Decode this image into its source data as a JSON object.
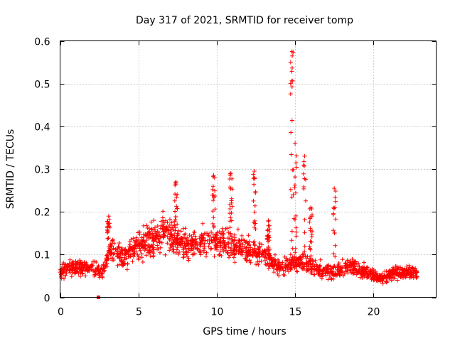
{
  "chart_data": {
    "type": "scatter",
    "title": "Day 317 of 2021, SRMTID for receiver tomp",
    "xlabel": "GPS time / hours",
    "ylabel": "SRMTID / TECUs",
    "xlim": [
      0,
      24
    ],
    "ylim": [
      0,
      0.6
    ],
    "xticks": [
      0,
      5,
      10,
      15,
      20
    ],
    "yticks": [
      0,
      0.1,
      0.2,
      0.3,
      0.4,
      0.5,
      0.6
    ],
    "xtick_labels": [
      "0",
      "5",
      "10",
      "15",
      "20"
    ],
    "ytick_labels": [
      "0",
      "0.1",
      "0.2",
      "0.3",
      "0.4",
      "0.5",
      "0.6"
    ],
    "grid": true,
    "marker": "+",
    "color": "#ff0000",
    "time_range_hours": [
      0,
      22.8
    ],
    "profile": [
      {
        "t": 0.0,
        "y": 0.06
      },
      {
        "t": 1.0,
        "y": 0.07
      },
      {
        "t": 2.0,
        "y": 0.068
      },
      {
        "t": 2.7,
        "y": 0.06
      },
      {
        "t": 3.2,
        "y": 0.11
      },
      {
        "t": 4.0,
        "y": 0.09
      },
      {
        "t": 5.0,
        "y": 0.12
      },
      {
        "t": 6.0,
        "y": 0.14
      },
      {
        "t": 7.0,
        "y": 0.15
      },
      {
        "t": 8.0,
        "y": 0.12
      },
      {
        "t": 9.0,
        "y": 0.13
      },
      {
        "t": 10.0,
        "y": 0.13
      },
      {
        "t": 11.0,
        "y": 0.12
      },
      {
        "t": 12.0,
        "y": 0.11
      },
      {
        "t": 13.0,
        "y": 0.1
      },
      {
        "t": 14.0,
        "y": 0.07
      },
      {
        "t": 14.8,
        "y": 0.08
      },
      {
        "t": 15.5,
        "y": 0.08
      },
      {
        "t": 16.5,
        "y": 0.065
      },
      {
        "t": 17.5,
        "y": 0.06
      },
      {
        "t": 18.5,
        "y": 0.075
      },
      {
        "t": 19.5,
        "y": 0.06
      },
      {
        "t": 20.5,
        "y": 0.045
      },
      {
        "t": 21.5,
        "y": 0.06
      },
      {
        "t": 22.8,
        "y": 0.055
      }
    ],
    "spikes": [
      {
        "t": 3.1,
        "y": 0.19
      },
      {
        "t": 7.4,
        "y": 0.27
      },
      {
        "t": 9.8,
        "y": 0.285
      },
      {
        "t": 10.9,
        "y": 0.29
      },
      {
        "t": 12.4,
        "y": 0.295
      },
      {
        "t": 13.3,
        "y": 0.18
      },
      {
        "t": 14.8,
        "y": 0.575
      },
      {
        "t": 15.0,
        "y": 0.36
      },
      {
        "t": 15.6,
        "y": 0.33
      },
      {
        "t": 16.0,
        "y": 0.21
      },
      {
        "t": 17.5,
        "y": 0.255
      }
    ],
    "outlier": {
      "t": 2.45,
      "y": 0.0
    }
  }
}
